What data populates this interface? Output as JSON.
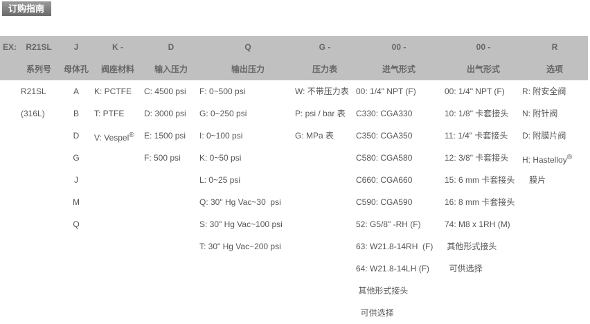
{
  "section_title": "订购指南",
  "columns": [
    {
      "code": "EX:",
      "label": "",
      "items": []
    },
    {
      "code": "R21SL",
      "label": "系列号",
      "items": [
        "R21SL",
        "(316L)"
      ]
    },
    {
      "code": "J",
      "label": "母体孔",
      "items": [
        "A",
        "B",
        "D",
        "G",
        "J",
        "M",
        "Q"
      ]
    },
    {
      "code": "K -",
      "label": "阀座材料",
      "items": [
        "K: PCTFE",
        "T: PTFE",
        "V: Vespel®"
      ]
    },
    {
      "code": "D",
      "label": "输入压力",
      "items": [
        "C: 4500 psi",
        "D: 3000 psi",
        "E: 1500 psi",
        "F: 500 psi"
      ]
    },
    {
      "code": "Q",
      "label": "输出压力",
      "items": [
        "F: 0~500 psi",
        "G: 0~250 psi",
        "I: 0~100 psi",
        "K: 0~50 psi",
        "L: 0~25 psi",
        "Q: 30\" Hg Vac~30  psi",
        "S: 30\" Hg Vac~100 psi",
        "T: 30\" Hg Vac~200 psi"
      ]
    },
    {
      "code": "G -",
      "label": "压力表",
      "items": [
        "W: 不带压力表",
        "P: psi / bar 表",
        "G: MPa 表"
      ]
    },
    {
      "code": "00 -",
      "label": "进气形式",
      "items": [
        "00: 1/4\" NPT (F)",
        "C330: CGA330",
        "C350: CGA350",
        "C580: CGA580",
        "C660: CGA660",
        "C590: CGA590",
        "52: G5/8\" -RH (F)",
        "63: W21.8-14RH  (F)",
        "64: W21.8-14LH (F)",
        " 其他形式接头",
        "  可供选择"
      ]
    },
    {
      "code": "00 -",
      "label": "出气形式",
      "items": [
        "00: 1/4\" NPT (F)",
        "10: 1/8\" 卡套接头",
        "11: 1/4\" 卡套接头",
        "12: 3/8\" 卡套接头",
        "15: 6 mm 卡套接头",
        "16: 8 mm 卡套接头",
        "74: M8 x 1RH (M)",
        " 其他形式接头",
        "  可供选择"
      ]
    },
    {
      "code": "R",
      "label": "选项",
      "items": [
        "R: 附安全阀",
        "N: 附针阀",
        "D: 附膜片阀",
        "H: Hastelloy®",
        "   膜片"
      ]
    }
  ]
}
